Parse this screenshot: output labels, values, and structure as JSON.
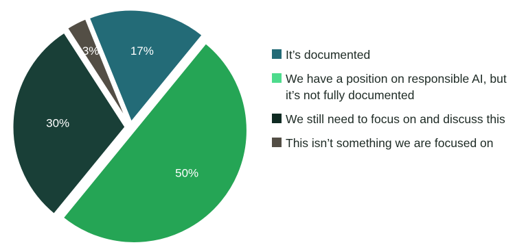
{
  "chart_data": {
    "type": "pie",
    "title": "",
    "slices": [
      {
        "label": "It’s documented",
        "value": 17,
        "display": "17%",
        "color": "#236b77"
      },
      {
        "label": "We have a position on responsible AI, but it’s not fully documented",
        "value": 50,
        "display": "50%",
        "color": "#25a555"
      },
      {
        "label": "We still need to focus on and discuss this",
        "value": 30,
        "display": "30%",
        "color": "#193f37"
      },
      {
        "label": "This isn’t something we are focused on",
        "value": 3,
        "display": "3%",
        "color": "#534e45"
      }
    ],
    "legend": {
      "placement": "right",
      "entries": [
        {
          "text": "It’s documented",
          "color": "#236b77"
        },
        {
          "text": "We have a position on responsible AI, but it’s not fully documented",
          "color": "#4ddb8c"
        },
        {
          "text": "We still need to focus on and discuss this",
          "color": "#0f2a22"
        },
        {
          "text": "This isn’t something we are focused on",
          "color": "#534e45"
        }
      ]
    }
  }
}
